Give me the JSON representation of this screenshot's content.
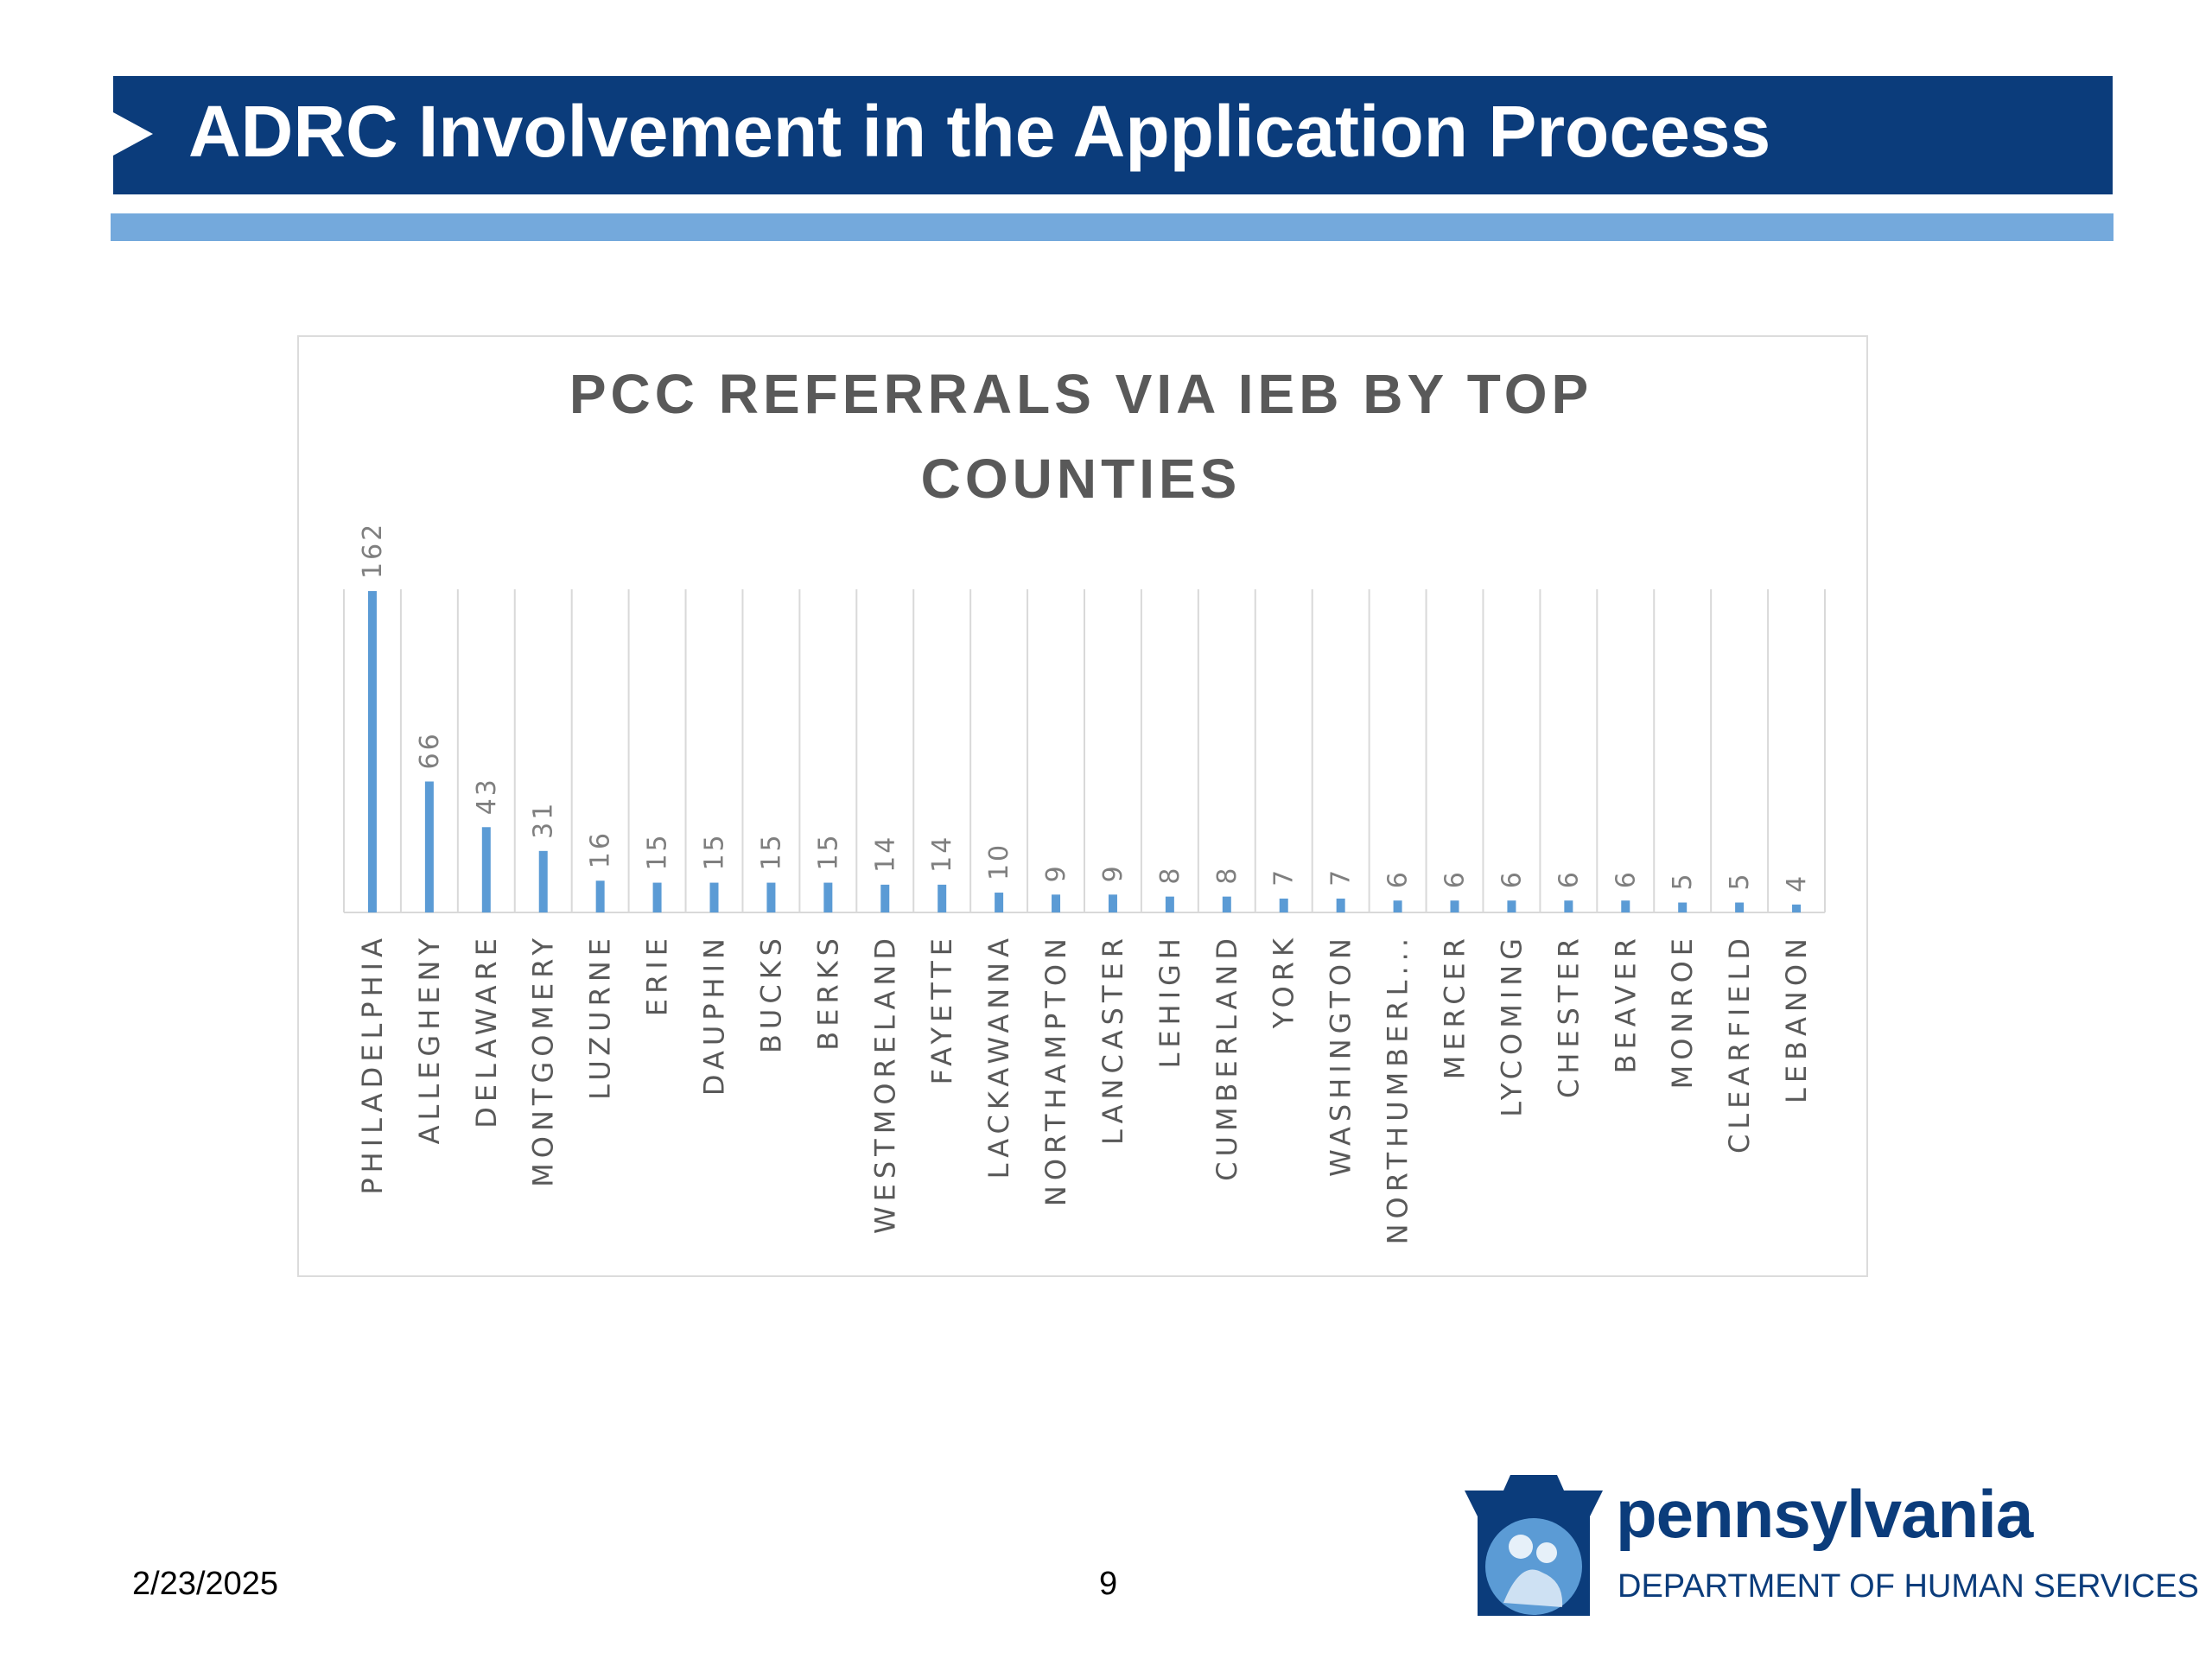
{
  "slide": {
    "title": "ADRC Involvement in the Application Process",
    "date": "2/23/2025",
    "page_number": "9"
  },
  "logo": {
    "wordmark": "pennsylvania",
    "subtitle": "DEPARTMENT OF HUMAN SERVICES"
  },
  "colors": {
    "header": "#0b3c7b",
    "accent_stripe": "#74a9dc",
    "bar": "#5b9bd5"
  },
  "chart_data": {
    "type": "bar",
    "title_lines": [
      "PCC REFERRALS VIA IEB BY TOP",
      "COUNTIES"
    ],
    "categories": [
      "PHILADELPHIA",
      "ALLEGHENY",
      "DELAWARE",
      "MONTGOMERY",
      "LUZURNE",
      "ERIE",
      "DAUPHIN",
      "BUCKS",
      "BERKS",
      "WESTMORELAND",
      "FAYETTE",
      "LACKAWANNA",
      "NORTHAMPTON",
      "LANCASTER",
      "LEHIGH",
      "CUMBERLAND",
      "YORK",
      "WASHINGTON",
      "NORTHUMBERL...",
      "MERCER",
      "LYCOMING",
      "CHESTER",
      "BEAVER",
      "MONROE",
      "CLEARFIELD",
      "LEBANON"
    ],
    "values": [
      162,
      66,
      43,
      31,
      16,
      15,
      15,
      15,
      15,
      14,
      14,
      10,
      9,
      9,
      8,
      8,
      7,
      7,
      6,
      6,
      6,
      6,
      6,
      5,
      5,
      4
    ],
    "ylim": [
      0,
      180
    ],
    "grid": "vertical",
    "legend": "none",
    "data_labels": true
  }
}
